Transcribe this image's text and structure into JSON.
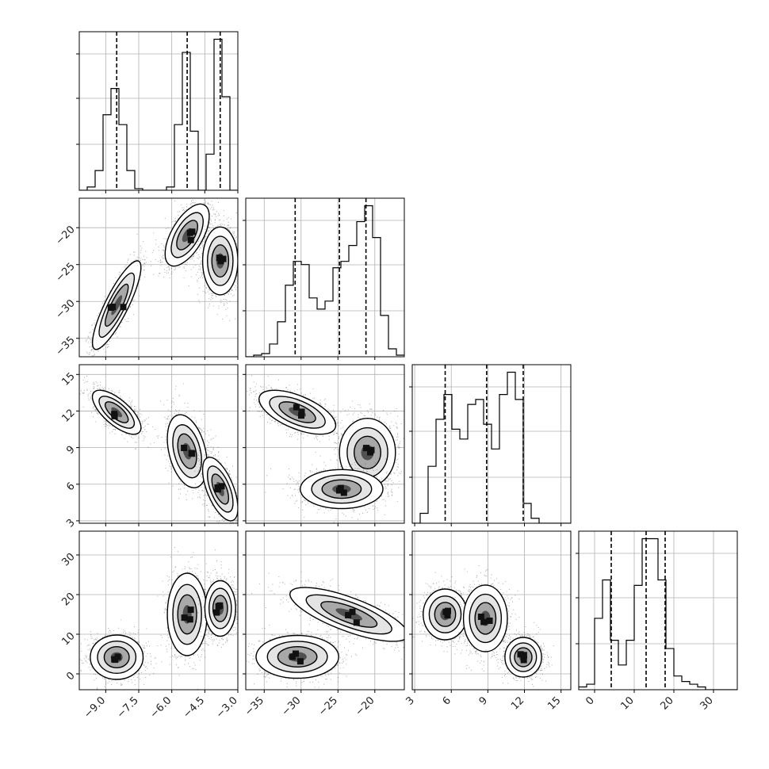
{
  "chart_data": {
    "type": "corner",
    "grid": true,
    "parameters": [
      {
        "xlim": [
          -10.2,
          -3.0
        ],
        "ticks": [
          -9.0,
          -7.5,
          -6.0,
          -4.5,
          -3.0
        ],
        "tick_labels": [
          "−9.0",
          "−7.5",
          "−6.0",
          "−4.5",
          "−3.0"
        ],
        "quantiles": [
          -8.5,
          -5.3,
          -3.8
        ],
        "hist_bins": [
          -10.2,
          -9.84,
          -9.48,
          -9.12,
          -8.76,
          -8.4,
          -8.04,
          -7.68,
          -7.32,
          -6.96,
          -6.6,
          -6.24,
          -5.88,
          -5.52,
          -5.16,
          -4.8,
          -4.44,
          -4.08,
          -3.72,
          -3.36,
          -3.0
        ],
        "hist_counts": [
          0,
          2,
          12,
          46,
          62,
          40,
          12,
          1,
          0,
          0,
          0,
          2,
          40,
          84,
          36,
          0,
          22,
          92,
          57,
          0
        ]
      },
      {
        "xlim": [
          -37.5,
          -16.0
        ],
        "ticks": [
          -35,
          -30,
          -25,
          -20
        ],
        "tick_labels": [
          "−35",
          "−30",
          "−25",
          "−20"
        ],
        "quantiles": [
          -30.8,
          -24.8,
          -21.2
        ],
        "hist_bins": [
          -37.5,
          -36.425,
          -35.35,
          -34.275,
          -33.2,
          -32.125,
          -31.05,
          -29.975,
          -28.9,
          -27.825,
          -26.75,
          -25.675,
          -24.6,
          -23.525,
          -22.45,
          -21.375,
          -20.3,
          -19.225,
          -18.15,
          -17.075,
          -16.0
        ],
        "hist_counts": [
          0,
          1,
          2,
          8,
          22,
          45,
          60,
          58,
          37,
          30,
          35,
          56,
          60,
          70,
          85,
          95,
          75,
          26,
          5,
          1
        ]
      },
      {
        "xlim": [
          2.8,
          15.8
        ],
        "ticks": [
          3,
          6,
          9,
          12,
          15
        ],
        "tick_labels": [
          "3",
          "6",
          "9",
          "12",
          "15"
        ],
        "quantiles": [
          5.5,
          8.9,
          11.9
        ],
        "hist_bins": [
          2.8,
          3.45,
          4.1,
          4.75,
          5.4,
          6.05,
          6.7,
          7.35,
          8.0,
          8.65,
          9.3,
          9.95,
          10.6,
          11.25,
          11.9,
          12.55,
          13.2,
          13.85,
          14.5,
          15.15,
          15.8
        ],
        "hist_counts": [
          0,
          4,
          23,
          42,
          52,
          38,
          34,
          48,
          50,
          40,
          30,
          52,
          61,
          50,
          8,
          2,
          0,
          0,
          0,
          0
        ]
      },
      {
        "xlim": [
          -4.0,
          36.0
        ],
        "ticks": [
          0,
          10,
          20,
          30
        ],
        "tick_labels": [
          "0",
          "10",
          "20",
          "30"
        ],
        "quantiles": [
          4.2,
          13.0,
          17.8
        ],
        "hist_bins": [
          -4,
          -2,
          0,
          2,
          4,
          6,
          8,
          10,
          12,
          14,
          16,
          18,
          20,
          22,
          24,
          26,
          28,
          30,
          32,
          34,
          36
        ],
        "hist_counts": [
          1,
          2,
          26,
          40,
          18,
          9,
          18,
          38,
          55,
          55,
          40,
          15,
          5,
          3,
          2,
          1,
          0,
          0,
          0,
          0
        ]
      }
    ],
    "y_axes": [
      null,
      {
        "ylim": [
          -37.5,
          -16.0
        ],
        "ticks": [
          -35,
          -30,
          -25,
          -20
        ],
        "tick_labels": [
          "−35",
          "−30",
          "−25",
          "−20"
        ]
      },
      {
        "ylim": [
          2.8,
          15.8
        ],
        "ticks": [
          3,
          6,
          9,
          12,
          15
        ],
        "tick_labels": [
          "3",
          "6",
          "9",
          "12",
          "15"
        ]
      },
      {
        "ylim": [
          -4.0,
          36.0
        ],
        "ticks": [
          0,
          10,
          20,
          30
        ],
        "tick_labels": [
          "0",
          "10",
          "20",
          "30"
        ]
      }
    ],
    "blobs": {
      "1-0": [
        {
          "cx": -8.5,
          "cy": -30.5,
          "sx": 0.55,
          "sy": 3.0,
          "rho": 0.85
        },
        {
          "cx": -5.3,
          "cy": -21.0,
          "sx": 0.5,
          "sy": 2.1,
          "rho": 0.6
        },
        {
          "cx": -3.8,
          "cy": -24.5,
          "sx": 0.4,
          "sy": 2.3,
          "rho": 0.0
        }
      ],
      "2-0": [
        {
          "cx": -8.5,
          "cy": 11.9,
          "sx": 0.55,
          "sy": 0.9,
          "rho": -0.7
        },
        {
          "cx": -5.3,
          "cy": 8.7,
          "sx": 0.45,
          "sy": 1.5,
          "rho": -0.35
        },
        {
          "cx": -3.8,
          "cy": 5.6,
          "sx": 0.4,
          "sy": 1.3,
          "rho": -0.6
        }
      ],
      "2-1": [
        {
          "cx": -30.5,
          "cy": 11.9,
          "sx": 2.6,
          "sy": 0.9,
          "rho": -0.6
        },
        {
          "cx": -21.0,
          "cy": 8.6,
          "sx": 1.9,
          "sy": 1.4,
          "rho": 0.0
        },
        {
          "cx": -24.5,
          "cy": 5.6,
          "sx": 2.8,
          "sy": 0.8,
          "rho": 0.0
        }
      ],
      "3-0": [
        {
          "cx": -8.5,
          "cy": 4.2,
          "sx": 0.6,
          "sy": 2.8,
          "rho": 0.0
        },
        {
          "cx": -5.3,
          "cy": 15.0,
          "sx": 0.45,
          "sy": 5.2,
          "rho": 0.0
        },
        {
          "cx": -3.8,
          "cy": 16.5,
          "sx": 0.35,
          "sy": 3.5,
          "rho": 0.0
        }
      ],
      "3-1": [
        {
          "cx": -30.5,
          "cy": 4.3,
          "sx": 2.8,
          "sy": 2.7,
          "rho": 0.0
        },
        {
          "cx": -23.5,
          "cy": 15.0,
          "sx": 4.0,
          "sy": 3.4,
          "rho": -0.75
        }
      ],
      "3-2": [
        {
          "cx": 5.5,
          "cy": 15.0,
          "sx": 0.9,
          "sy": 3.2,
          "rho": 0.0
        },
        {
          "cx": 8.8,
          "cy": 14.0,
          "sx": 0.9,
          "sy": 4.2,
          "rho": 0.0
        },
        {
          "cx": 11.9,
          "cy": 4.2,
          "sx": 0.75,
          "sy": 2.5,
          "rho": 0.0
        }
      ]
    }
  }
}
